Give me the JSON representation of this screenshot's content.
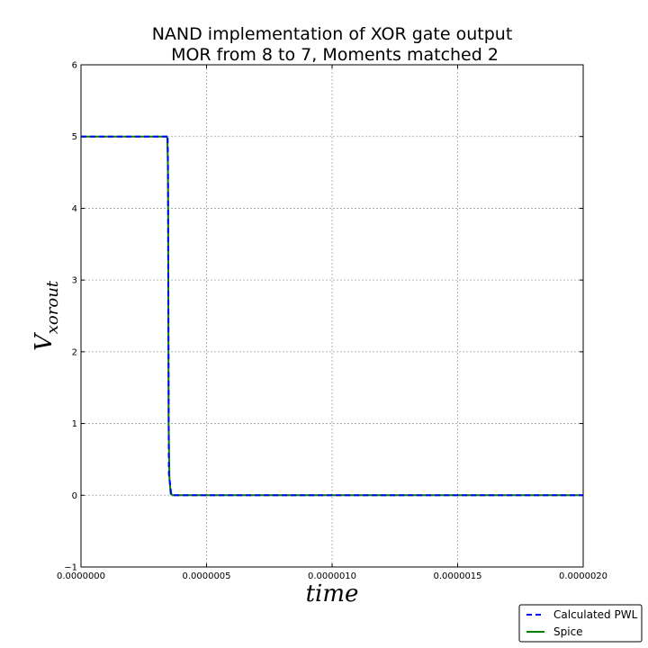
{
  "chart_data": {
    "type": "line",
    "title_lines": [
      "NAND implementation of XOR gate    output",
      "MOR from 8 to 7, Moments matched 2"
    ],
    "xlabel": "time",
    "ylabel_main": "V",
    "ylabel_sub": "xorout",
    "xlim": [
      0,
      2e-06
    ],
    "ylim": [
      -1,
      6
    ],
    "x_ticks": [
      0,
      5e-07,
      1e-06,
      1.5e-06,
      2e-06
    ],
    "x_tick_labels": [
      "0.0000000",
      "0.0000005",
      "0.0000010",
      "0.0000015",
      "0.0000020"
    ],
    "y_ticks": [
      -1,
      0,
      1,
      2,
      3,
      4,
      5,
      6
    ],
    "y_tick_labels": [
      "−1",
      "0",
      "1",
      "2",
      "3",
      "4",
      "5",
      "6"
    ],
    "grid": true,
    "legend_position": "bottom-right-outside",
    "series": [
      {
        "name": "Calculated PWL",
        "color": "#0000ff",
        "style": "dashed",
        "x": [
          0,
          3.4e-07,
          3.45e-07,
          3.465e-07,
          3.48e-07,
          3.5e-07,
          3.6e-07,
          2e-06
        ],
        "y": [
          5,
          5,
          5.02,
          4.6,
          2.5,
          0.3,
          0.0,
          0.0
        ]
      },
      {
        "name": "Spice",
        "color": "#008000",
        "style": "solid",
        "x": [
          0,
          3.4e-07,
          3.44e-07,
          3.46e-07,
          3.47e-07,
          3.48e-07,
          3.49e-07,
          3.52e-07,
          3.57e-07,
          3.65e-07,
          2e-06
        ],
        "y": [
          5,
          5,
          4.98,
          4.6,
          4.0,
          2.5,
          1.0,
          0.25,
          0.02,
          0.0,
          0.0
        ]
      }
    ]
  }
}
